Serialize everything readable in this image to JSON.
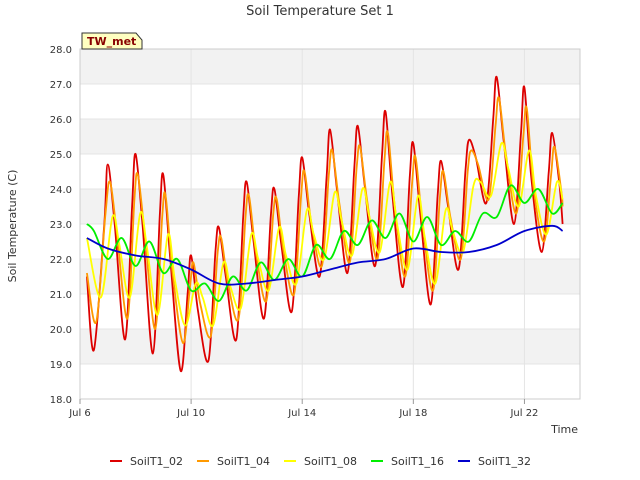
{
  "chart_data": {
    "type": "line",
    "title": "Soil Temperature Set 1",
    "xlabel": "Time",
    "ylabel": "Soil Temperature (C)",
    "ylim": [
      18.0,
      28.0
    ],
    "xlim": [
      "2024-07-06",
      "2024-07-24"
    ],
    "x_ticks": [
      "Jul 6",
      "Jul 10",
      "Jul 14",
      "Jul 18",
      "Jul 22"
    ],
    "y_ticks": [
      "18.0",
      "19.0",
      "20.0",
      "21.0",
      "22.0",
      "23.0",
      "24.0",
      "25.0",
      "26.0",
      "27.0",
      "28.0"
    ],
    "site_label": "TW_met",
    "grid": true,
    "legend_position": "bottom",
    "series": [
      {
        "name": "SoilT1_02",
        "color": "#dd0000",
        "points": [
          [
            "2024-07-06T06:00",
            21.5
          ],
          [
            "2024-07-06T12:00",
            19.4
          ],
          [
            "2024-07-06T21:00",
            23.0
          ],
          [
            "2024-07-07T00:00",
            24.7
          ],
          [
            "2024-07-07T06:00",
            23.0
          ],
          [
            "2024-07-07T15:00",
            19.7
          ],
          [
            "2024-07-07T21:00",
            23.5
          ],
          [
            "2024-07-08T00:00",
            25.0
          ],
          [
            "2024-07-08T06:00",
            23.0
          ],
          [
            "2024-07-08T15:00",
            19.3
          ],
          [
            "2024-07-08T21:00",
            23.3
          ],
          [
            "2024-07-09T00:00",
            24.4
          ],
          [
            "2024-07-09T06:00",
            22.0
          ],
          [
            "2024-07-09T15:00",
            18.8
          ],
          [
            "2024-07-09T21:00",
            21.0
          ],
          [
            "2024-07-10T00:00",
            22.1
          ],
          [
            "2024-07-10T06:00",
            20.5
          ],
          [
            "2024-07-10T15:00",
            19.1
          ],
          [
            "2024-07-10T21:00",
            22.2
          ],
          [
            "2024-07-11T00:00",
            22.9
          ],
          [
            "2024-07-11T06:00",
            21.5
          ],
          [
            "2024-07-11T15:00",
            19.7
          ],
          [
            "2024-07-11T21:00",
            23.2
          ],
          [
            "2024-07-12T00:00",
            24.2
          ],
          [
            "2024-07-12T06:00",
            22.5
          ],
          [
            "2024-07-12T15:00",
            20.3
          ],
          [
            "2024-07-12T21:00",
            23.3
          ],
          [
            "2024-07-13T00:00",
            24.0
          ],
          [
            "2024-07-13T06:00",
            22.4
          ],
          [
            "2024-07-13T15:00",
            20.5
          ],
          [
            "2024-07-13T21:00",
            23.8
          ],
          [
            "2024-07-14T00:00",
            24.9
          ],
          [
            "2024-07-14T06:00",
            23.3
          ],
          [
            "2024-07-14T15:00",
            21.5
          ],
          [
            "2024-07-14T21:00",
            24.3
          ],
          [
            "2024-07-15T00:00",
            25.7
          ],
          [
            "2024-07-15T06:00",
            24.0
          ],
          [
            "2024-07-15T15:00",
            21.6
          ],
          [
            "2024-07-15T21:00",
            24.6
          ],
          [
            "2024-07-16T00:00",
            25.8
          ],
          [
            "2024-07-16T06:00",
            24.1
          ],
          [
            "2024-07-16T15:00",
            21.8
          ],
          [
            "2024-07-16T21:00",
            25.0
          ],
          [
            "2024-07-17T00:00",
            26.2
          ],
          [
            "2024-07-17T06:00",
            23.8
          ],
          [
            "2024-07-17T15:00",
            21.2
          ],
          [
            "2024-07-17T21:00",
            24.4
          ],
          [
            "2024-07-18T00:00",
            25.3
          ],
          [
            "2024-07-18T06:00",
            23.3
          ],
          [
            "2024-07-18T15:00",
            20.7
          ],
          [
            "2024-07-18T21:00",
            23.8
          ],
          [
            "2024-07-19T00:00",
            24.8
          ],
          [
            "2024-07-19T06:00",
            23.5
          ],
          [
            "2024-07-19T15:00",
            21.7
          ],
          [
            "2024-07-19T21:00",
            24.5
          ],
          [
            "2024-07-20T00:00",
            25.4
          ],
          [
            "2024-07-20T06:00",
            24.9
          ],
          [
            "2024-07-20T15:00",
            23.6
          ],
          [
            "2024-07-20T21:00",
            26.0
          ],
          [
            "2024-07-21T00:00",
            27.2
          ],
          [
            "2024-07-21T06:00",
            25.4
          ],
          [
            "2024-07-21T15:00",
            23.0
          ],
          [
            "2024-07-21T21:00",
            25.6
          ],
          [
            "2024-07-22T00:00",
            26.9
          ],
          [
            "2024-07-22T06:00",
            24.3
          ],
          [
            "2024-07-22T15:00",
            22.2
          ],
          [
            "2024-07-22T21:00",
            24.5
          ],
          [
            "2024-07-23T00:00",
            25.6
          ],
          [
            "2024-07-23T06:00",
            24.2
          ],
          [
            "2024-07-23T09:00",
            23.0
          ]
        ]
      },
      {
        "name": "SoilT1_04",
        "color": "#ff9900",
        "points": [
          [
            "2024-07-06T06:00",
            21.6
          ],
          [
            "2024-07-06T14:00",
            20.2
          ],
          [
            "2024-07-06T22:00",
            23.3
          ],
          [
            "2024-07-07T02:00",
            24.2
          ],
          [
            "2024-07-07T08:00",
            22.7
          ],
          [
            "2024-07-07T17:00",
            20.3
          ],
          [
            "2024-07-07T23:00",
            23.7
          ],
          [
            "2024-07-08T02:00",
            24.4
          ],
          [
            "2024-07-08T08:00",
            22.7
          ],
          [
            "2024-07-08T17:00",
            20.0
          ],
          [
            "2024-07-08T23:00",
            23.2
          ],
          [
            "2024-07-09T02:00",
            23.8
          ],
          [
            "2024-07-09T08:00",
            21.6
          ],
          [
            "2024-07-09T17:00",
            19.6
          ],
          [
            "2024-07-09T23:00",
            21.2
          ],
          [
            "2024-07-10T02:00",
            21.9
          ],
          [
            "2024-07-10T08:00",
            20.7
          ],
          [
            "2024-07-10T17:00",
            19.8
          ],
          [
            "2024-07-10T23:00",
            22.2
          ],
          [
            "2024-07-11T02:00",
            22.6
          ],
          [
            "2024-07-11T08:00",
            21.3
          ],
          [
            "2024-07-11T17:00",
            20.3
          ],
          [
            "2024-07-11T23:00",
            23.2
          ],
          [
            "2024-07-12T02:00",
            23.8
          ],
          [
            "2024-07-12T08:00",
            22.2
          ],
          [
            "2024-07-12T17:00",
            20.8
          ],
          [
            "2024-07-12T23:00",
            23.3
          ],
          [
            "2024-07-13T02:00",
            23.7
          ],
          [
            "2024-07-13T08:00",
            22.2
          ],
          [
            "2024-07-13T17:00",
            21.0
          ],
          [
            "2024-07-13T23:00",
            23.8
          ],
          [
            "2024-07-14T02:00",
            24.5
          ],
          [
            "2024-07-14T08:00",
            23.0
          ],
          [
            "2024-07-14T17:00",
            21.8
          ],
          [
            "2024-07-14T23:00",
            24.4
          ],
          [
            "2024-07-15T02:00",
            25.1
          ],
          [
            "2024-07-15T08:00",
            23.6
          ],
          [
            "2024-07-15T17:00",
            21.9
          ],
          [
            "2024-07-15T23:00",
            24.6
          ],
          [
            "2024-07-16T02:00",
            25.2
          ],
          [
            "2024-07-16T08:00",
            23.7
          ],
          [
            "2024-07-16T17:00",
            22.0
          ],
          [
            "2024-07-16T23:00",
            24.8
          ],
          [
            "2024-07-17T02:00",
            25.6
          ],
          [
            "2024-07-17T08:00",
            23.5
          ],
          [
            "2024-07-17T17:00",
            21.5
          ],
          [
            "2024-07-17T23:00",
            24.2
          ],
          [
            "2024-07-18T02:00",
            24.9
          ],
          [
            "2024-07-18T08:00",
            23.0
          ],
          [
            "2024-07-18T17:00",
            21.1
          ],
          [
            "2024-07-18T23:00",
            23.8
          ],
          [
            "2024-07-19T02:00",
            24.5
          ],
          [
            "2024-07-19T08:00",
            23.2
          ],
          [
            "2024-07-19T17:00",
            22.0
          ],
          [
            "2024-07-19T23:00",
            24.5
          ],
          [
            "2024-07-20T02:00",
            25.1
          ],
          [
            "2024-07-20T08:00",
            24.7
          ],
          [
            "2024-07-20T17:00",
            23.7
          ],
          [
            "2024-07-20T23:00",
            25.8
          ],
          [
            "2024-07-21T02:00",
            26.6
          ],
          [
            "2024-07-21T08:00",
            25.0
          ],
          [
            "2024-07-21T17:00",
            23.3
          ],
          [
            "2024-07-21T23:00",
            25.5
          ],
          [
            "2024-07-22T02:00",
            26.3
          ],
          [
            "2024-07-22T08:00",
            24.0
          ],
          [
            "2024-07-22T17:00",
            22.5
          ],
          [
            "2024-07-22T23:00",
            24.4
          ],
          [
            "2024-07-23T02:00",
            25.2
          ],
          [
            "2024-07-23T08:00",
            23.9
          ],
          [
            "2024-07-23T09:00",
            23.5
          ]
        ]
      },
      {
        "name": "SoilT1_08",
        "color": "#ffff00",
        "points": [
          [
            "2024-07-06T06:00",
            22.6
          ],
          [
            "2024-07-06T18:00",
            20.9
          ],
          [
            "2024-07-07T04:00",
            23.2
          ],
          [
            "2024-07-07T10:00",
            22.4
          ],
          [
            "2024-07-07T19:00",
            20.9
          ],
          [
            "2024-07-08T04:00",
            23.3
          ],
          [
            "2024-07-08T10:00",
            22.3
          ],
          [
            "2024-07-08T19:00",
            20.4
          ],
          [
            "2024-07-09T04:00",
            22.7
          ],
          [
            "2024-07-09T10:00",
            21.4
          ],
          [
            "2024-07-09T19:00",
            20.1
          ],
          [
            "2024-07-10T04:00",
            21.3
          ],
          [
            "2024-07-10T10:00",
            20.9
          ],
          [
            "2024-07-10T19:00",
            20.1
          ],
          [
            "2024-07-11T04:00",
            21.9
          ],
          [
            "2024-07-11T10:00",
            21.2
          ],
          [
            "2024-07-11T19:00",
            20.6
          ],
          [
            "2024-07-12T04:00",
            22.7
          ],
          [
            "2024-07-12T10:00",
            22.0
          ],
          [
            "2024-07-12T19:00",
            21.1
          ],
          [
            "2024-07-13T04:00",
            22.9
          ],
          [
            "2024-07-13T10:00",
            22.1
          ],
          [
            "2024-07-13T19:00",
            21.3
          ],
          [
            "2024-07-14T04:00",
            23.4
          ],
          [
            "2024-07-14T10:00",
            22.7
          ],
          [
            "2024-07-14T19:00",
            22.0
          ],
          [
            "2024-07-15T04:00",
            23.9
          ],
          [
            "2024-07-15T10:00",
            23.1
          ],
          [
            "2024-07-15T19:00",
            22.1
          ],
          [
            "2024-07-16T04:00",
            24.0
          ],
          [
            "2024-07-16T10:00",
            23.2
          ],
          [
            "2024-07-16T19:00",
            22.2
          ],
          [
            "2024-07-17T04:00",
            24.2
          ],
          [
            "2024-07-17T10:00",
            23.0
          ],
          [
            "2024-07-17T19:00",
            21.7
          ],
          [
            "2024-07-18T04:00",
            23.8
          ],
          [
            "2024-07-18T10:00",
            22.6
          ],
          [
            "2024-07-18T19:00",
            21.3
          ],
          [
            "2024-07-19T04:00",
            23.4
          ],
          [
            "2024-07-19T10:00",
            22.8
          ],
          [
            "2024-07-19T19:00",
            22.2
          ],
          [
            "2024-07-20T04:00",
            24.1
          ],
          [
            "2024-07-20T10:00",
            24.2
          ],
          [
            "2024-07-20T19:00",
            23.8
          ],
          [
            "2024-07-21T04:00",
            25.3
          ],
          [
            "2024-07-21T10:00",
            24.6
          ],
          [
            "2024-07-21T19:00",
            23.5
          ],
          [
            "2024-07-22T04:00",
            25.1
          ],
          [
            "2024-07-22T10:00",
            23.8
          ],
          [
            "2024-07-22T19:00",
            22.7
          ],
          [
            "2024-07-23T04:00",
            24.2
          ],
          [
            "2024-07-23T09:00",
            23.7
          ]
        ]
      },
      {
        "name": "SoilT1_16",
        "color": "#00ee00",
        "points": [
          [
            "2024-07-06T06:00",
            23.0
          ],
          [
            "2024-07-06T12:00",
            22.8
          ],
          [
            "2024-07-07T00:00",
            22.0
          ],
          [
            "2024-07-07T12:00",
            22.6
          ],
          [
            "2024-07-08T00:00",
            21.8
          ],
          [
            "2024-07-08T12:00",
            22.5
          ],
          [
            "2024-07-09T00:00",
            21.6
          ],
          [
            "2024-07-09T12:00",
            22.0
          ],
          [
            "2024-07-10T00:00",
            21.1
          ],
          [
            "2024-07-10T12:00",
            21.3
          ],
          [
            "2024-07-11T00:00",
            20.8
          ],
          [
            "2024-07-11T12:00",
            21.5
          ],
          [
            "2024-07-12T00:00",
            21.1
          ],
          [
            "2024-07-12T12:00",
            21.9
          ],
          [
            "2024-07-13T00:00",
            21.4
          ],
          [
            "2024-07-13T12:00",
            22.0
          ],
          [
            "2024-07-14T00:00",
            21.5
          ],
          [
            "2024-07-14T12:00",
            22.4
          ],
          [
            "2024-07-15T00:00",
            22.0
          ],
          [
            "2024-07-15T12:00",
            22.8
          ],
          [
            "2024-07-16T00:00",
            22.4
          ],
          [
            "2024-07-16T12:00",
            23.1
          ],
          [
            "2024-07-17T00:00",
            22.6
          ],
          [
            "2024-07-17T12:00",
            23.3
          ],
          [
            "2024-07-18T00:00",
            22.5
          ],
          [
            "2024-07-18T12:00",
            23.2
          ],
          [
            "2024-07-19T00:00",
            22.4
          ],
          [
            "2024-07-19T12:00",
            22.8
          ],
          [
            "2024-07-20T00:00",
            22.5
          ],
          [
            "2024-07-20T12:00",
            23.3
          ],
          [
            "2024-07-21T00:00",
            23.2
          ],
          [
            "2024-07-21T12:00",
            24.1
          ],
          [
            "2024-07-22T00:00",
            23.6
          ],
          [
            "2024-07-22T12:00",
            24.0
          ],
          [
            "2024-07-23T00:00",
            23.3
          ],
          [
            "2024-07-23T09:00",
            23.6
          ]
        ]
      },
      {
        "name": "SoilT1_32",
        "color": "#0000cc",
        "points": [
          [
            "2024-07-06T06:00",
            22.6
          ],
          [
            "2024-07-07T00:00",
            22.3
          ],
          [
            "2024-07-08T00:00",
            22.1
          ],
          [
            "2024-07-09T00:00",
            22.0
          ],
          [
            "2024-07-10T00:00",
            21.7
          ],
          [
            "2024-07-11T00:00",
            21.3
          ],
          [
            "2024-07-12T00:00",
            21.3
          ],
          [
            "2024-07-13T00:00",
            21.4
          ],
          [
            "2024-07-14T00:00",
            21.5
          ],
          [
            "2024-07-15T00:00",
            21.7
          ],
          [
            "2024-07-16T00:00",
            21.9
          ],
          [
            "2024-07-17T00:00",
            22.0
          ],
          [
            "2024-07-18T00:00",
            22.3
          ],
          [
            "2024-07-19T00:00",
            22.2
          ],
          [
            "2024-07-20T00:00",
            22.2
          ],
          [
            "2024-07-21T00:00",
            22.4
          ],
          [
            "2024-07-22T00:00",
            22.8
          ],
          [
            "2024-07-23T00:00",
            22.95
          ],
          [
            "2024-07-23T09:00",
            22.8
          ]
        ]
      }
    ]
  }
}
